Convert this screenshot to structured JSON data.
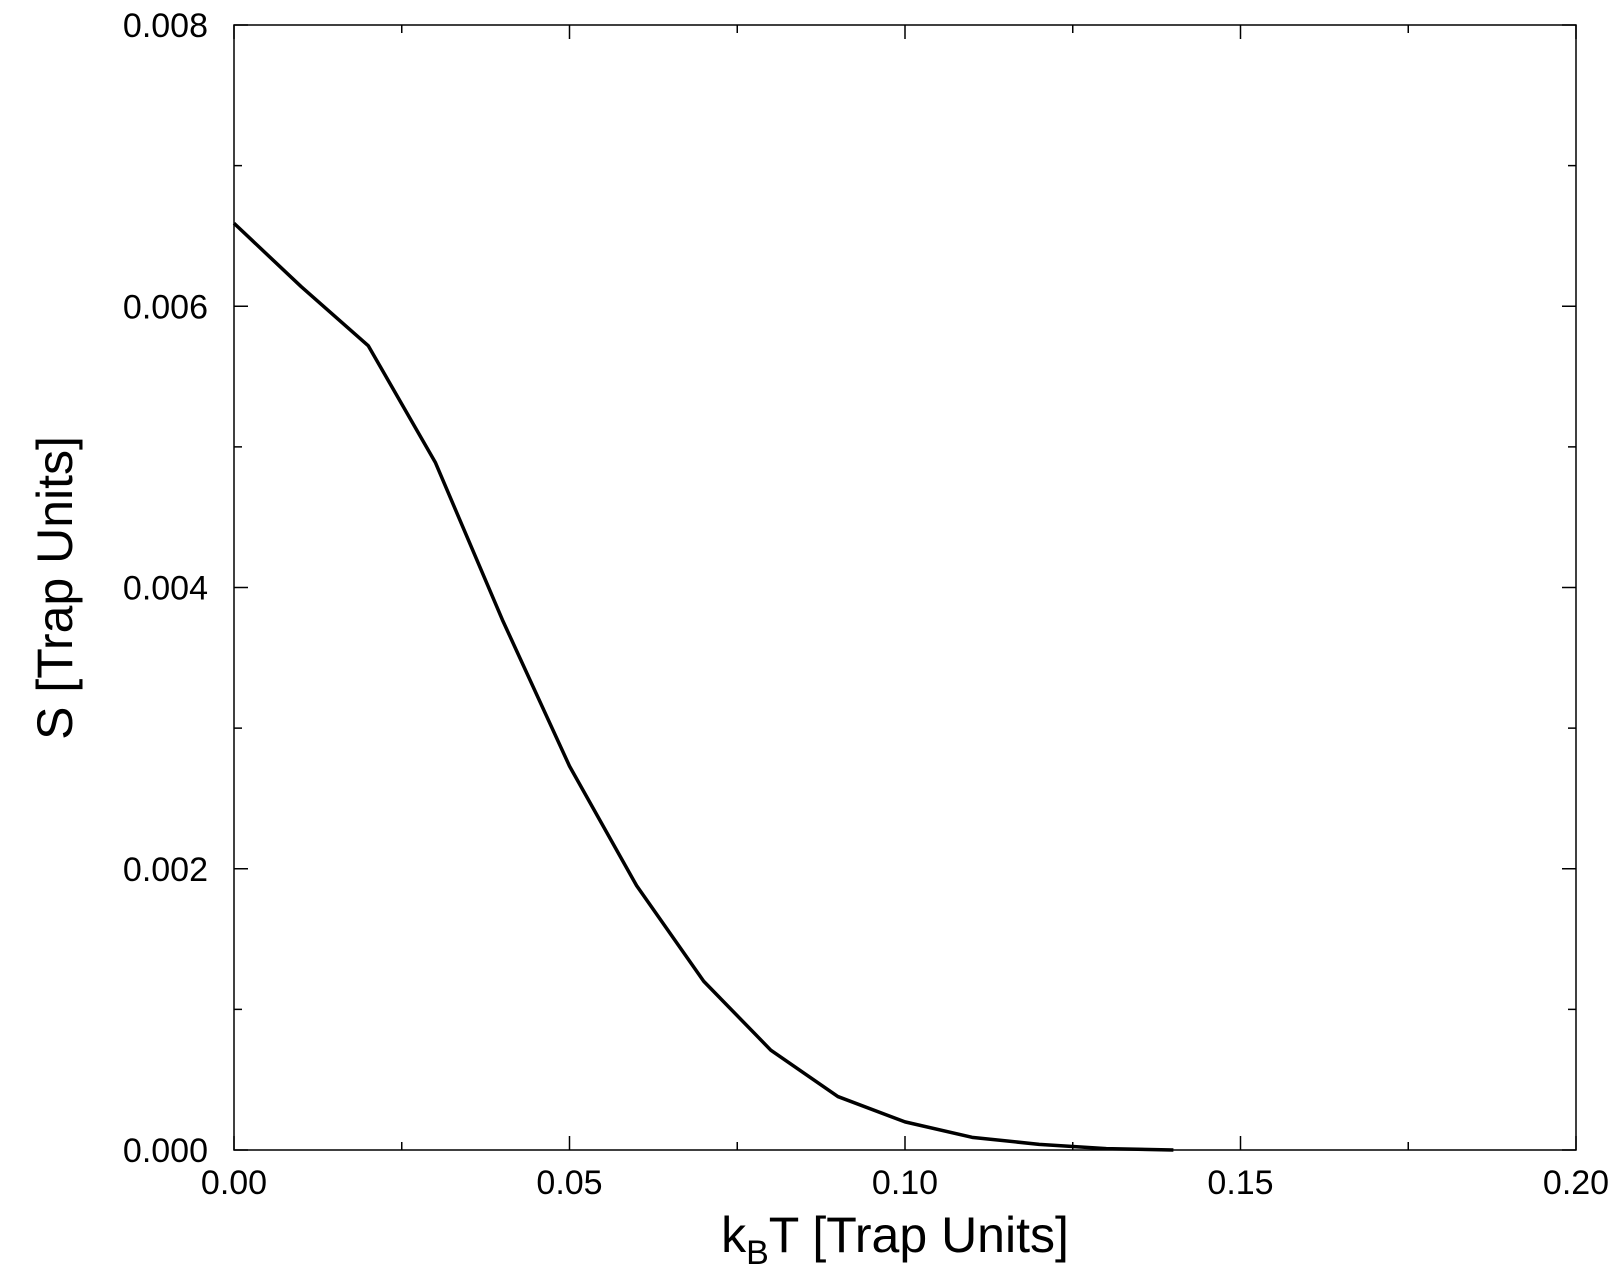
{
  "chart_data": {
    "type": "line",
    "xlabel_main": "k",
    "xlabel_sub": "B",
    "xlabel_rest": "T [Trap Units]",
    "ylabel": "S [Trap Units]",
    "xlim": [
      0,
      0.2
    ],
    "ylim": [
      0,
      0.008
    ],
    "x_ticks": [
      "0.00",
      "0.05",
      "0.10",
      "0.15",
      "0.20"
    ],
    "y_ticks": [
      "0.000",
      "0.002",
      "0.004",
      "0.006",
      "0.008"
    ],
    "grid": false,
    "line_color": "#000000",
    "series": [
      {
        "x": [
          0.0,
          0.01,
          0.02,
          0.03,
          0.04,
          0.05,
          0.06,
          0.07,
          0.08,
          0.09,
          0.1,
          0.11,
          0.12,
          0.13,
          0.14
        ],
        "y": [
          0.00659,
          0.00614,
          0.00572,
          0.00489,
          0.00377,
          0.00273,
          0.00188,
          0.0012,
          0.00071,
          0.00038,
          0.0002,
          9e-05,
          4e-05,
          1e-05,
          0.0
        ]
      }
    ]
  }
}
